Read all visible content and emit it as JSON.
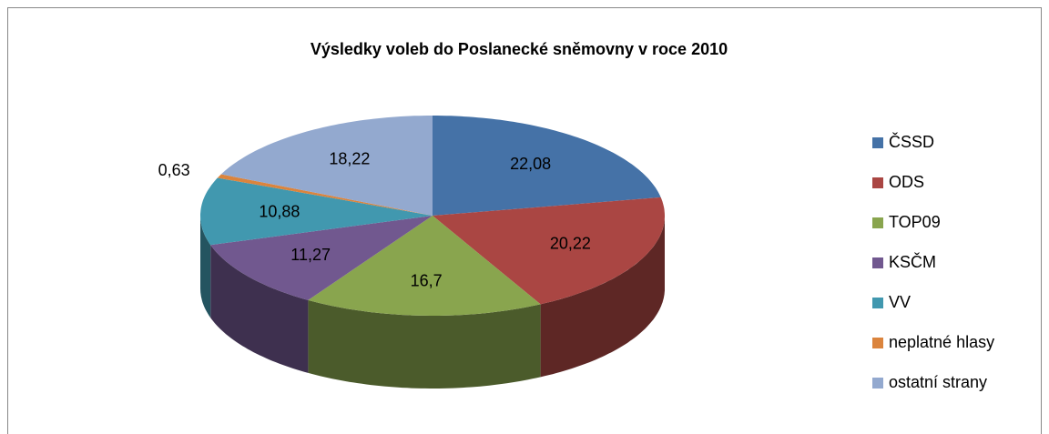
{
  "chart_data": {
    "type": "pie",
    "title": "Výsledky voleb do Poslanecké sněmovny v roce 2010",
    "categories": [
      "ČSSD",
      "ODS",
      "TOP09",
      "KSČM",
      "VV",
      "neplatné hlasy",
      "ostatní strany"
    ],
    "values": [
      22.08,
      20.22,
      16.7,
      11.27,
      10.88,
      0.63,
      18.22
    ],
    "value_labels": [
      "22,08",
      "20,22",
      "16,7",
      "11,27",
      "10,88",
      "0,63",
      "18,22"
    ],
    "colors": [
      "#4572a7",
      "#aa4643",
      "#89a54e",
      "#71588f",
      "#4198af",
      "#db843d",
      "#93a9cf"
    ],
    "legend": "right"
  }
}
